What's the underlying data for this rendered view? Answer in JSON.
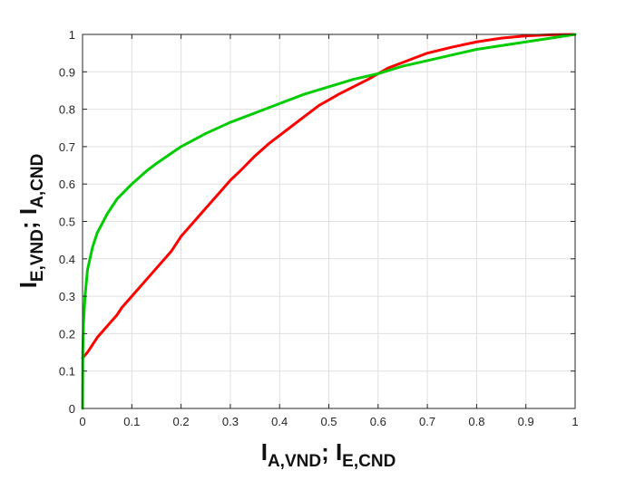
{
  "chart_data": {
    "type": "line",
    "title": "",
    "xlabel": {
      "parts": [
        {
          "text": "I",
          "sub": false
        },
        {
          "text": "A,VND",
          "sub": true
        },
        {
          "text": "; I",
          "sub": false
        },
        {
          "text": "E,CND",
          "sub": true
        }
      ]
    },
    "ylabel": {
      "parts": [
        {
          "text": "I",
          "sub": false
        },
        {
          "text": "E,VND",
          "sub": true
        },
        {
          "text": "; I",
          "sub": false
        },
        {
          "text": "A,CND",
          "sub": true
        }
      ]
    },
    "xlim": [
      0,
      1
    ],
    "ylim": [
      0,
      1
    ],
    "xticks": [
      "0",
      "0.1",
      "0.2",
      "0.3",
      "0.4",
      "0.5",
      "0.6",
      "0.7",
      "0.8",
      "0.9",
      "1"
    ],
    "yticks": [
      "0",
      "0.1",
      "0.2",
      "0.3",
      "0.4",
      "0.5",
      "0.6",
      "0.7",
      "0.8",
      "0.9",
      "1"
    ],
    "grid": true,
    "legend": "none",
    "series": [
      {
        "color": "#ff0000",
        "x": [
          0.0,
          0.01,
          0.02,
          0.03,
          0.05,
          0.07,
          0.08,
          0.1,
          0.12,
          0.14,
          0.16,
          0.18,
          0.2,
          0.22,
          0.25,
          0.28,
          0.3,
          0.32,
          0.35,
          0.38,
          0.4,
          0.42,
          0.45,
          0.48,
          0.5,
          0.52,
          0.55,
          0.58,
          0.6,
          0.62,
          0.65,
          0.68,
          0.7,
          0.75,
          0.8,
          0.85,
          0.9,
          0.95,
          1.0
        ],
        "y": [
          0.135,
          0.15,
          0.17,
          0.19,
          0.22,
          0.25,
          0.27,
          0.3,
          0.33,
          0.36,
          0.39,
          0.42,
          0.46,
          0.49,
          0.535,
          0.58,
          0.61,
          0.635,
          0.675,
          0.71,
          0.73,
          0.75,
          0.78,
          0.81,
          0.825,
          0.84,
          0.86,
          0.88,
          0.895,
          0.91,
          0.925,
          0.94,
          0.95,
          0.966,
          0.98,
          0.99,
          0.996,
          0.999,
          1.0
        ]
      },
      {
        "color": "#00cc00",
        "x": [
          0.0,
          0.0005,
          0.002,
          0.005,
          0.01,
          0.02,
          0.03,
          0.05,
          0.07,
          0.1,
          0.13,
          0.15,
          0.2,
          0.25,
          0.3,
          0.35,
          0.4,
          0.45,
          0.5,
          0.55,
          0.6,
          0.65,
          0.7,
          0.75,
          0.8,
          0.85,
          0.9,
          0.95,
          1.0
        ],
        "y": [
          0.0,
          0.15,
          0.23,
          0.3,
          0.37,
          0.43,
          0.47,
          0.52,
          0.56,
          0.6,
          0.635,
          0.655,
          0.7,
          0.735,
          0.765,
          0.79,
          0.815,
          0.84,
          0.86,
          0.88,
          0.895,
          0.915,
          0.93,
          0.945,
          0.96,
          0.97,
          0.98,
          0.99,
          1.0
        ]
      }
    ]
  }
}
